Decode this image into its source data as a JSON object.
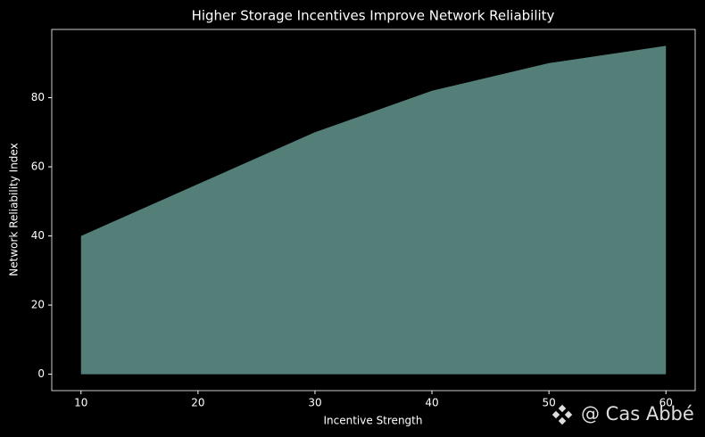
{
  "chart_data": {
    "type": "area",
    "title": "Higher Storage Incentives Improve Network Reliability",
    "x_label": "Incentive Strength",
    "y_label": "Network Reliability Index",
    "x": [
      10,
      20,
      30,
      40,
      50,
      60
    ],
    "values": [
      40,
      55,
      70,
      82,
      90,
      95
    ],
    "color": "#537f78",
    "xlim": [
      7.5,
      62.5
    ],
    "ylim": [
      -4.75,
      99.75
    ],
    "xticks": [
      10,
      20,
      30,
      40,
      50,
      60
    ],
    "yticks": [
      0,
      20,
      40,
      60,
      80
    ]
  },
  "watermark": "@ Cas Abbé"
}
